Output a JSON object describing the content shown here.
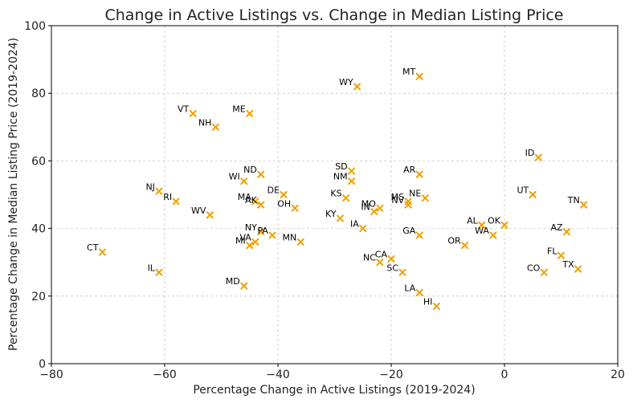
{
  "chart_data": {
    "type": "scatter",
    "title": "Change in Active Listings vs. Change in Median Listing Price",
    "xlabel": "Percentage Change in Active Listings (2019-2024)",
    "ylabel": "Percentage Change in Median Listing Price (2019-2024)",
    "xlim": [
      -80,
      20
    ],
    "ylim": [
      0,
      100
    ],
    "xticks": [
      -80,
      -60,
      -40,
      -20,
      0,
      20
    ],
    "yticks": [
      0,
      20,
      40,
      60,
      80,
      100
    ],
    "grid": true,
    "marker": "x",
    "marker_color": "#f0a000",
    "points": [
      {
        "label": "CT",
        "x": -71,
        "y": 33
      },
      {
        "label": "IL",
        "x": -61,
        "y": 27
      },
      {
        "label": "NJ",
        "x": -61,
        "y": 51
      },
      {
        "label": "RI",
        "x": -58,
        "y": 48
      },
      {
        "label": "VT",
        "x": -55,
        "y": 74
      },
      {
        "label": "WV",
        "x": -52,
        "y": 44
      },
      {
        "label": "NH",
        "x": -51,
        "y": 70
      },
      {
        "label": "MD",
        "x": -46,
        "y": 23
      },
      {
        "label": "WI",
        "x": -46,
        "y": 54
      },
      {
        "label": "ME",
        "x": -45,
        "y": 74
      },
      {
        "label": "MI",
        "x": -45,
        "y": 35
      },
      {
        "label": "VA",
        "x": -44,
        "y": 36
      },
      {
        "label": "NY",
        "x": -43,
        "y": 39
      },
      {
        "label": "MA",
        "x": -44,
        "y": 48
      },
      {
        "label": "ND",
        "x": -43,
        "y": 56
      },
      {
        "label": "AK",
        "x": -43,
        "y": 47
      },
      {
        "label": "PA",
        "x": -41,
        "y": 38
      },
      {
        "label": "DE",
        "x": -39,
        "y": 50
      },
      {
        "label": "OH",
        "x": -37,
        "y": 46
      },
      {
        "label": "MN",
        "x": -36,
        "y": 36
      },
      {
        "label": "KY",
        "x": -29,
        "y": 43
      },
      {
        "label": "KS",
        "x": -28,
        "y": 49
      },
      {
        "label": "SD",
        "x": -27,
        "y": 57
      },
      {
        "label": "NM",
        "x": -27,
        "y": 54
      },
      {
        "label": "WY",
        "x": -26,
        "y": 82
      },
      {
        "label": "IN",
        "x": -23,
        "y": 45
      },
      {
        "label": "MO",
        "x": -22,
        "y": 46
      },
      {
        "label": "IA",
        "x": -25,
        "y": 40
      },
      {
        "label": "NC",
        "x": -22,
        "y": 30
      },
      {
        "label": "CA",
        "x": -20,
        "y": 31
      },
      {
        "label": "SC",
        "x": -18,
        "y": 27
      },
      {
        "label": "MS",
        "x": -17,
        "y": 48
      },
      {
        "label": "NV",
        "x": -17,
        "y": 47
      },
      {
        "label": "MT",
        "x": -15,
        "y": 85
      },
      {
        "label": "AR",
        "x": -15,
        "y": 56
      },
      {
        "label": "NE",
        "x": -14,
        "y": 49
      },
      {
        "label": "GA",
        "x": -15,
        "y": 38
      },
      {
        "label": "LA",
        "x": -15,
        "y": 21
      },
      {
        "label": "HI",
        "x": -12,
        "y": 17
      },
      {
        "label": "OR",
        "x": -7,
        "y": 35
      },
      {
        "label": "AL",
        "x": -4,
        "y": 41
      },
      {
        "label": "WA",
        "x": -2,
        "y": 38
      },
      {
        "label": "OK",
        "x": 0,
        "y": 41
      },
      {
        "label": "UT",
        "x": 5,
        "y": 50
      },
      {
        "label": "ID",
        "x": 6,
        "y": 61
      },
      {
        "label": "CO",
        "x": 7,
        "y": 27
      },
      {
        "label": "FL",
        "x": 10,
        "y": 32
      },
      {
        "label": "AZ",
        "x": 11,
        "y": 39
      },
      {
        "label": "TX",
        "x": 13,
        "y": 28
      },
      {
        "label": "TN",
        "x": 14,
        "y": 47
      }
    ]
  }
}
